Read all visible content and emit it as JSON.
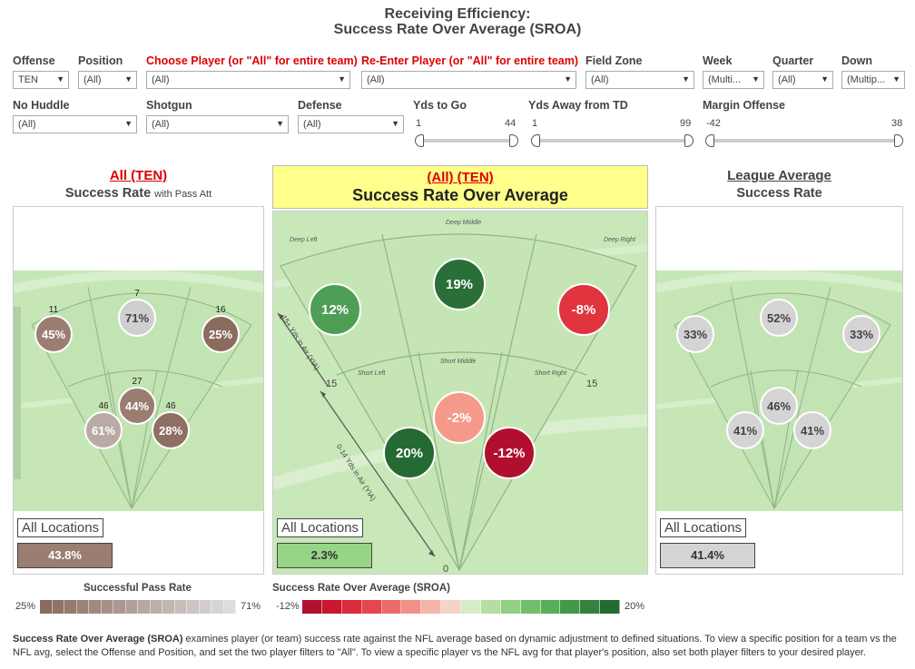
{
  "title": {
    "line1": "Receiving Efficiency:",
    "line2": "Success Rate Over Average (SROA)"
  },
  "filters": {
    "offense": {
      "label": "Offense",
      "value": "TEN"
    },
    "position": {
      "label": "Position",
      "value": "(All)"
    },
    "choose_player": {
      "label": "Choose Player (or \"All\" for entire team)",
      "value": "(All)"
    },
    "reenter_player": {
      "label": "Re-Enter Player (or \"All\" for entire team)",
      "value": "(All)"
    },
    "field_zone": {
      "label": "Field Zone",
      "value": "(All)"
    },
    "week": {
      "label": "Week",
      "value": "(Multi..."
    },
    "quarter": {
      "label": "Quarter",
      "value": "(All)"
    },
    "down": {
      "label": "Down",
      "value": "(Multip..."
    },
    "no_huddle": {
      "label": "No Huddle",
      "value": "(All)"
    },
    "shotgun": {
      "label": "Shotgun",
      "value": "(All)"
    },
    "defense": {
      "label": "Defense",
      "value": "(All)"
    }
  },
  "sliders": {
    "yds_to_go": {
      "label": "Yds to Go",
      "min": "1",
      "max": "44"
    },
    "yds_away_td": {
      "label": "Yds Away from TD",
      "min": "1",
      "max": "99"
    },
    "margin_offense": {
      "label": "Margin Offense",
      "min": "-42",
      "max": "38"
    }
  },
  "panels": {
    "left": {
      "title_line1": "All (TEN)",
      "title_main": "Success Rate",
      "title_suffix": "with Pass Att",
      "bubbles": {
        "deep_left": {
          "value": "45%",
          "count": "11",
          "color": "#9b7e72"
        },
        "deep_middle": {
          "value": "71%",
          "count": "7",
          "color": "#cfcfcf"
        },
        "deep_right": {
          "value": "25%",
          "count": "16",
          "color": "#8b6b5e"
        },
        "short_middle": {
          "value": "44%",
          "count": "27",
          "color": "#9a7d71"
        },
        "short_left": {
          "value": "61%",
          "count": "46",
          "color": "#b9aaa4"
        },
        "short_right": {
          "value": "28%",
          "count": "46",
          "color": "#8e6f62"
        }
      },
      "all_locations_label": "All Locations",
      "all_locations_value": "43.8%",
      "all_locations_color": "#9b7e72"
    },
    "center": {
      "title_line1": "(All) (TEN)",
      "title_main": "Success Rate Over Average",
      "header_bg": "#ffff8c",
      "bubbles": {
        "deep_left": {
          "value": "12%",
          "color": "#4e9e55"
        },
        "deep_middle": {
          "value": "19%",
          "color": "#2a6e38"
        },
        "deep_right": {
          "value": "-8%",
          "color": "#e0343f"
        },
        "short_middle": {
          "value": "-2%",
          "color": "#f59a8a"
        },
        "short_left": {
          "value": "20%",
          "color": "#256a33"
        },
        "short_right": {
          "value": "-12%",
          "color": "#b0102d"
        }
      },
      "zone_labels": {
        "deep_left": "Deep Left",
        "deep_middle": "Deep Middle",
        "deep_right": "Deep Right",
        "short_left": "Short Left",
        "short_middle": "Short Middle",
        "short_right": "Short Right",
        "deep_axis": "15+ Yds in Air (YIA)",
        "short_axis": "0-14 Yds in Air (YIA)",
        "mark15_left": "15",
        "mark15_right": "15",
        "mark0": "0"
      },
      "all_locations_label": "All Locations",
      "all_locations_value": "2.3%",
      "all_locations_color": "#96d486"
    },
    "right": {
      "title_line1": "League Average",
      "title_main": "Success Rate",
      "bubbles": {
        "deep_left": {
          "value": "33%"
        },
        "deep_middle": {
          "value": "52%"
        },
        "deep_right": {
          "value": "33%"
        },
        "short_middle": {
          "value": "46%"
        },
        "short_left": {
          "value": "41%"
        },
        "short_right": {
          "value": "41%"
        }
      },
      "all_locations_label": "All Locations",
      "all_locations_value": "41.4%",
      "all_locations_color": "#d4d4d4"
    }
  },
  "legends": {
    "pass_rate": {
      "title": "Successful Pass Rate",
      "min": "25%",
      "max": "71%",
      "color_min": "#8b6b5e",
      "color_max": "#dcdcdc"
    },
    "sroa": {
      "title": "Success Rate Over Average (SROA)",
      "min": "-12%",
      "max": "20%",
      "color_min": "#b0102d",
      "color_max": "#256a33"
    }
  },
  "footer": {
    "bold": "Success Rate Over Average (SROA)",
    "text": " examines player (or team) success rate against the NFL average based on dynamic adjustment to defined situations. To view a specific position for a team vs the NFL avg, select the Offense and Position, and set the two player filters to \"All\". To view a specific player vs the NFL avg for that player's position, also set both player filters to your desired player."
  }
}
